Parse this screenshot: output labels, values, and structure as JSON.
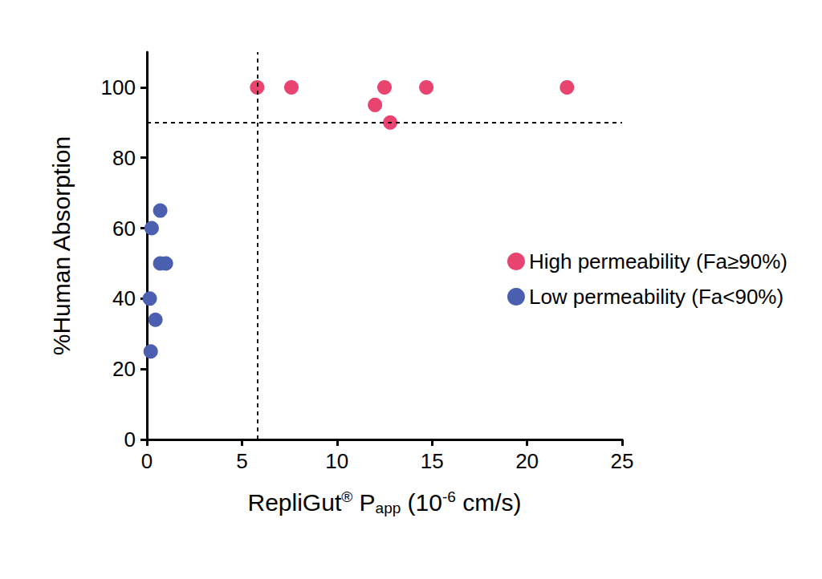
{
  "chart_data": {
    "type": "scatter",
    "x_label": [
      {
        "text": "RepliGut"
      },
      {
        "text": "®",
        "style": "sup"
      },
      {
        "text": " P"
      },
      {
        "text": "app",
        "style": "sub"
      },
      {
        "text": " (10"
      },
      {
        "text": "-6",
        "style": "sup"
      },
      {
        "text": " cm/s)"
      }
    ],
    "y_label": "%Human Absorption",
    "xlim": [
      0,
      25
    ],
    "xticks": [
      0,
      5,
      10,
      15,
      20,
      25
    ],
    "ylim": [
      0,
      110
    ],
    "yticks": [
      0,
      20,
      40,
      60,
      80,
      100
    ],
    "grid": false,
    "legend": "right",
    "reference_lines": {
      "x": 5.8,
      "y": 90
    },
    "series": [
      {
        "name": "High permeability (Fa≥90%)",
        "color": "#e8446f",
        "marker": "circle",
        "x": [
          5.8,
          7.6,
          12.5,
          14.7,
          22.1,
          12.0,
          12.8
        ],
        "values": [
          100,
          100,
          100,
          100,
          100,
          95,
          90
        ]
      },
      {
        "name": "Low permeability (Fa<90%)",
        "color": "#4a5fb0",
        "marker": "circle",
        "x": [
          0.7,
          0.25,
          0.7,
          1.0,
          0.15,
          0.45,
          0.2
        ],
        "values": [
          65,
          60,
          50,
          50,
          40,
          34,
          25
        ]
      }
    ]
  }
}
